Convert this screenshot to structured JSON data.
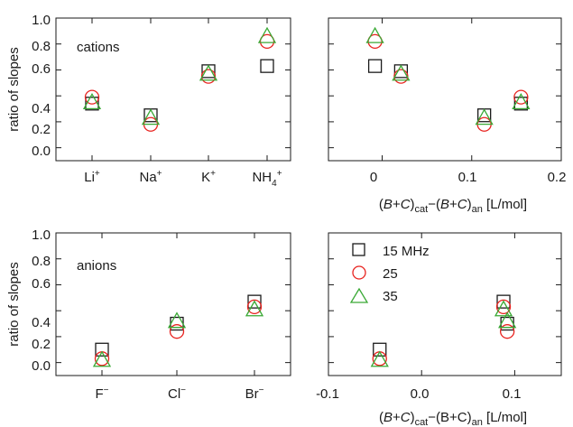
{
  "colors": {
    "15 MHz": "#1a1a1a",
    "25": "#e8231f",
    "35": "#3aa935",
    "axis": "#1a1a1a"
  },
  "chart_data": [
    {
      "type": "scatter",
      "panel": "top-left",
      "annotation": "cations",
      "ylabel": "ratio of slopes",
      "xlabel": "",
      "ylim": [
        -0.1,
        1.0
      ],
      "yticks": [
        "0.0",
        "0.2",
        "0.4",
        "0.6",
        "0.8",
        "1.0"
      ],
      "categories": [
        "Li+",
        "Na+",
        "K+",
        "NH4+"
      ],
      "grid": false,
      "series": [
        {
          "name": "15 MHz",
          "marker": "square",
          "values": [
            0.34,
            0.25,
            0.59,
            0.63
          ]
        },
        {
          "name": "25",
          "marker": "circle",
          "values": [
            0.39,
            0.18,
            0.55,
            0.82
          ]
        },
        {
          "name": "35",
          "marker": "triangle",
          "values": [
            0.35,
            0.23,
            0.57,
            0.86
          ]
        }
      ]
    },
    {
      "type": "scatter",
      "panel": "top-right",
      "xlabel": "(B+C)cat−(B+C)an [L/mol]",
      "ylabel": "",
      "xlim": [
        -0.06,
        0.2
      ],
      "ylim": [
        -0.1,
        1.0
      ],
      "xticks": [
        "0",
        "0.1",
        "0.2"
      ],
      "grid": false,
      "series": [
        {
          "name": "15 MHz",
          "marker": "square",
          "x": [
            -0.008,
            0.021,
            0.114,
            0.155
          ],
          "y": [
            0.63,
            0.59,
            0.25,
            0.34
          ]
        },
        {
          "name": "25",
          "marker": "circle",
          "x": [
            -0.008,
            0.021,
            0.114,
            0.155
          ],
          "y": [
            0.82,
            0.55,
            0.18,
            0.39
          ]
        },
        {
          "name": "35",
          "marker": "triangle",
          "x": [
            -0.008,
            0.021,
            0.114,
            0.155
          ],
          "y": [
            0.86,
            0.57,
            0.23,
            0.35
          ]
        }
      ]
    },
    {
      "type": "scatter",
      "panel": "bottom-left",
      "annotation": "anions",
      "ylabel": "ratio of slopes",
      "xlabel": "",
      "ylim": [
        -0.1,
        1.0
      ],
      "yticks": [
        "0.0",
        "0.2",
        "0.4",
        "0.6",
        "0.8",
        "1.0"
      ],
      "categories": [
        "F−",
        "Cl−",
        "Br−"
      ],
      "grid": false,
      "series": [
        {
          "name": "15 MHz",
          "marker": "square",
          "values": [
            0.1,
            0.3,
            0.47
          ]
        },
        {
          "name": "25",
          "marker": "circle",
          "values": [
            0.03,
            0.24,
            0.43
          ]
        },
        {
          "name": "35",
          "marker": "triangle",
          "values": [
            0.02,
            0.32,
            0.41
          ]
        }
      ]
    },
    {
      "type": "scatter",
      "panel": "bottom-right",
      "xlabel": "(B+C)cat−(B+C)an [L/mol]",
      "ylabel": "",
      "xlim": [
        -0.1,
        0.15
      ],
      "ylim": [
        -0.1,
        1.0
      ],
      "xticks": [
        "-0.1",
        "0.0",
        "0.1"
      ],
      "grid": false,
      "legend": "top-left",
      "series": [
        {
          "name": "15 MHz",
          "marker": "square",
          "x": [
            -0.045,
            0.088,
            0.092
          ],
          "y": [
            0.1,
            0.47,
            0.3
          ]
        },
        {
          "name": "25",
          "marker": "circle",
          "x": [
            -0.045,
            0.088,
            0.092
          ],
          "y": [
            0.03,
            0.43,
            0.24
          ]
        },
        {
          "name": "35",
          "marker": "triangle",
          "x": [
            -0.045,
            0.088,
            0.092
          ],
          "y": [
            0.02,
            0.41,
            0.32
          ]
        }
      ]
    }
  ]
}
